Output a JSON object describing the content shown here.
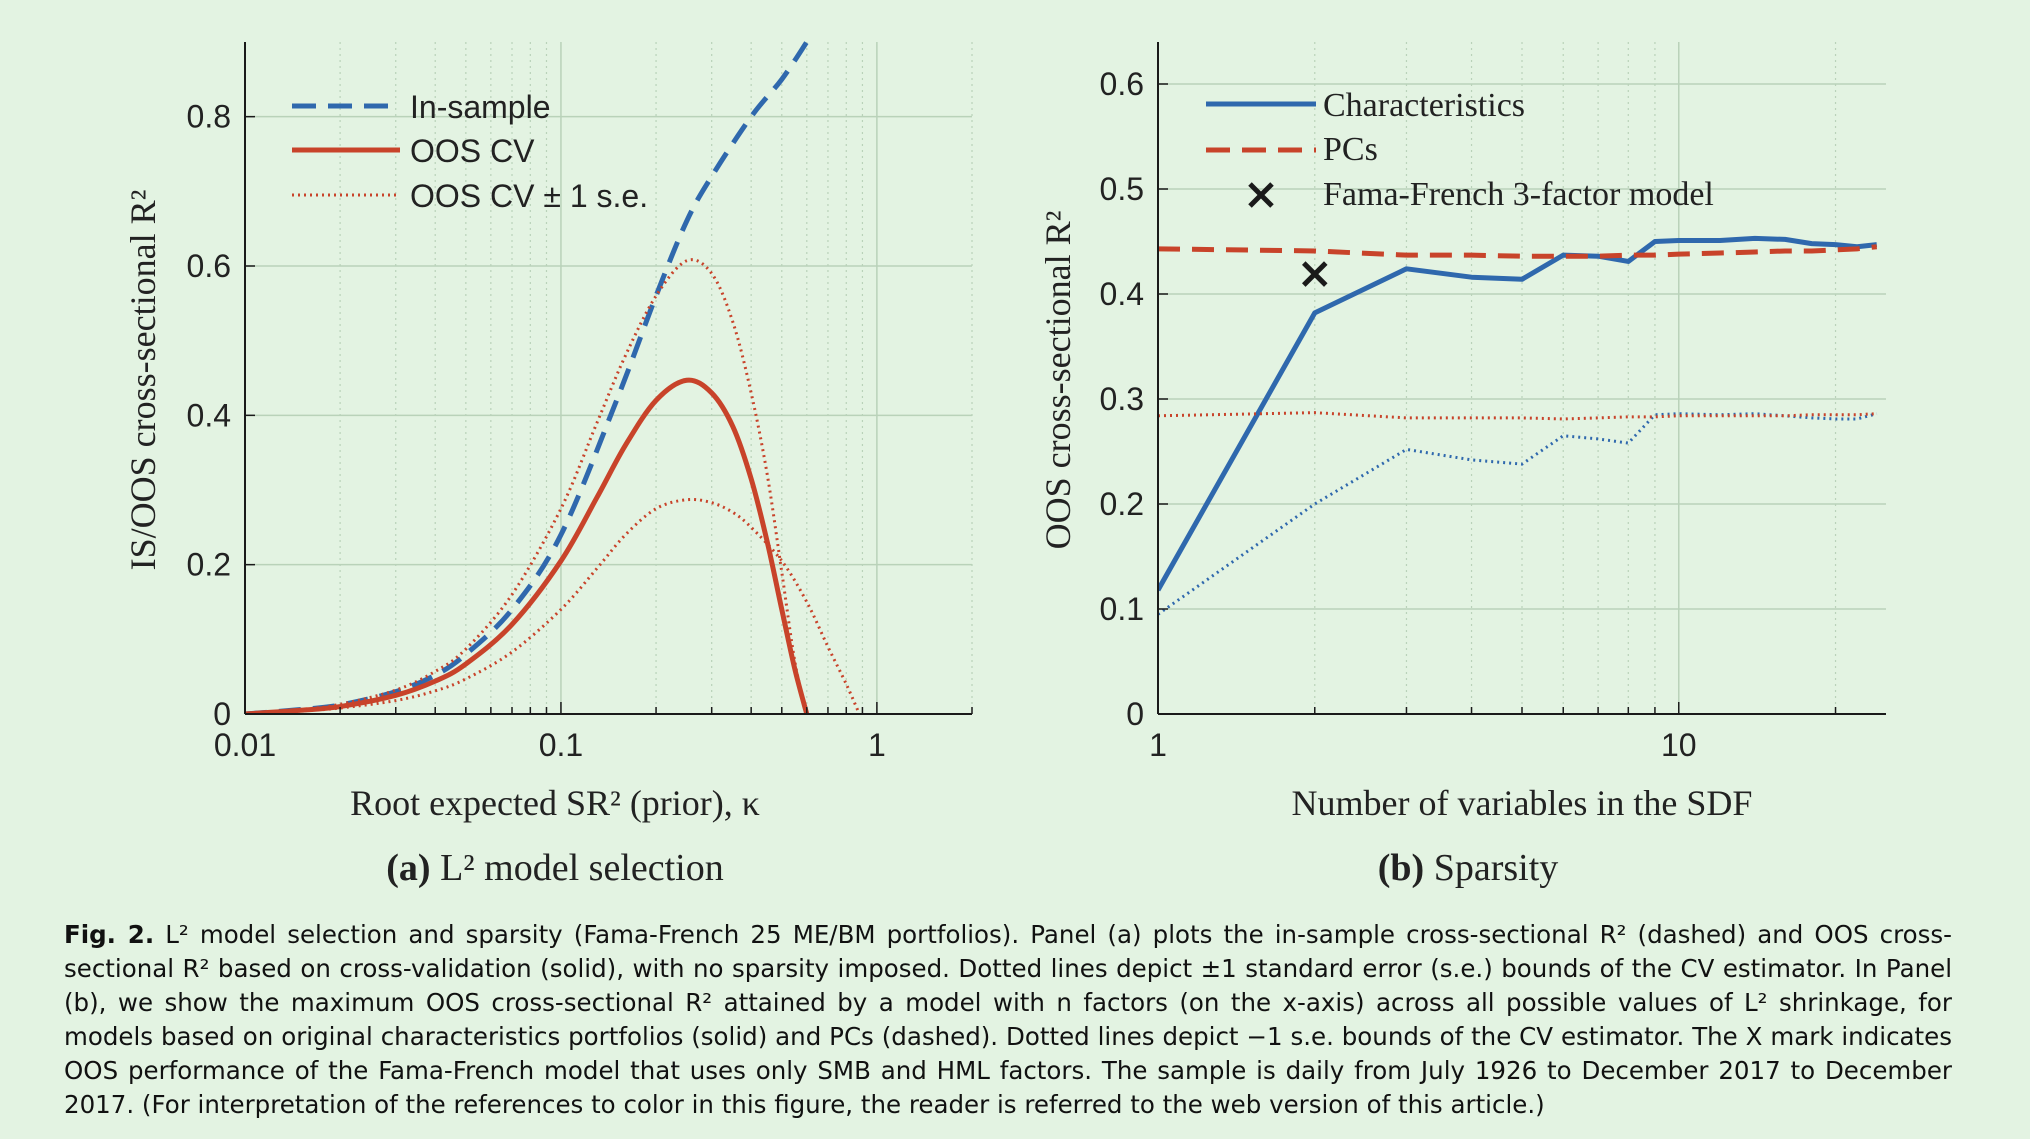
{
  "colors": {
    "background": "#e3f3e2",
    "blue": "#2f68ad",
    "red": "#c8432a",
    "grid": "#b9d2b9",
    "axis": "#1a1a1a",
    "marker": "#1a1a1a"
  },
  "panel_a": {
    "label_bold": "(a)",
    "label_rest": " L² model selection",
    "legend": [
      "In-sample",
      "OOS CV",
      "OOS CV ± 1 s.e."
    ]
  },
  "panel_b": {
    "label_bold": "(b)",
    "label_rest": " Sparsity",
    "legend": [
      "Characteristics",
      "PCs",
      "Fama-French 3-factor model"
    ]
  },
  "chart_data": [
    {
      "type": "line",
      "xscale": "log",
      "xlim": [
        0.01,
        2
      ],
      "ylim": [
        0,
        0.9
      ],
      "xticks": [
        0.01,
        0.1,
        1
      ],
      "xtick_labels": [
        "0.01",
        "0.1",
        "1"
      ],
      "yticks": [
        0,
        0.2,
        0.4,
        0.6,
        0.8
      ],
      "ytick_labels": [
        "0",
        "0.2",
        "0.4",
        "0.6",
        "0.8"
      ],
      "xlabel": "Root expected SR² (prior), κ",
      "ylabel": "IS/OOS cross-sectional R²",
      "grid": true,
      "legend_position": "top-left",
      "series": [
        {
          "name": "In-sample",
          "style": "dashed",
          "color": "#2f68ad",
          "x": [
            0.01,
            0.015,
            0.02,
            0.03,
            0.04,
            0.05,
            0.07,
            0.1,
            0.15,
            0.2,
            0.25,
            0.3,
            0.4,
            0.5,
            0.6
          ],
          "y": [
            0.0,
            0.006,
            0.012,
            0.03,
            0.052,
            0.08,
            0.14,
            0.24,
            0.42,
            0.56,
            0.66,
            0.72,
            0.8,
            0.85,
            0.9
          ]
        },
        {
          "name": "OOS CV",
          "style": "solid",
          "color": "#c8432a",
          "x": [
            0.01,
            0.015,
            0.02,
            0.03,
            0.04,
            0.05,
            0.07,
            0.1,
            0.13,
            0.16,
            0.2,
            0.25,
            0.3,
            0.35,
            0.4,
            0.45,
            0.5,
            0.55,
            0.6
          ],
          "y": [
            0.0,
            0.005,
            0.01,
            0.025,
            0.044,
            0.067,
            0.12,
            0.205,
            0.29,
            0.36,
            0.42,
            0.447,
            0.43,
            0.385,
            0.315,
            0.23,
            0.14,
            0.06,
            0.0
          ]
        },
        {
          "name": "OOS CV ± 1 s.e.",
          "style": "dotted",
          "color": "#c8432a",
          "x": [
            0.01,
            0.015,
            0.02,
            0.03,
            0.04,
            0.05,
            0.07,
            0.1,
            0.13,
            0.16,
            0.2,
            0.25,
            0.3,
            0.35,
            0.4,
            0.45,
            0.5,
            0.55,
            0.6
          ],
          "y": [
            0.0,
            0.006,
            0.013,
            0.032,
            0.057,
            0.087,
            0.16,
            0.275,
            0.39,
            0.48,
            0.56,
            0.607,
            0.59,
            0.525,
            0.43,
            0.32,
            0.19,
            0.07,
            0.0
          ]
        },
        {
          "name": "",
          "style": "dotted",
          "color": "#c8432a",
          "x": [
            0.01,
            0.015,
            0.02,
            0.03,
            0.04,
            0.05,
            0.07,
            0.1,
            0.13,
            0.16,
            0.2,
            0.25,
            0.3,
            0.35,
            0.4,
            0.5,
            0.6,
            0.7,
            0.8,
            0.88
          ],
          "y": [
            0.0,
            0.004,
            0.008,
            0.018,
            0.031,
            0.047,
            0.083,
            0.14,
            0.195,
            0.24,
            0.275,
            0.287,
            0.283,
            0.27,
            0.25,
            0.205,
            0.15,
            0.09,
            0.04,
            0.0
          ]
        }
      ]
    },
    {
      "type": "line",
      "xscale": "log",
      "xlim": [
        1,
        25
      ],
      "ylim": [
        0,
        0.64
      ],
      "xticks": [
        1,
        10
      ],
      "xtick_labels": [
        "1",
        "10"
      ],
      "yticks": [
        0,
        0.1,
        0.2,
        0.3,
        0.4,
        0.5,
        0.6
      ],
      "ytick_labels": [
        "0",
        "0.1",
        "0.2",
        "0.3",
        "0.4",
        "0.5",
        "0.6"
      ],
      "xlabel": "Number of variables in the SDF",
      "ylabel": "OOS cross-sectional R²",
      "grid": true,
      "legend_position": "top-left",
      "series": [
        {
          "name": "Characteristics",
          "style": "solid",
          "color": "#2f68ad",
          "x": [
            1,
            2,
            3,
            4,
            5,
            6,
            7,
            8,
            9,
            10,
            12,
            14,
            16,
            18,
            20,
            22,
            24
          ],
          "y": [
            0.118,
            0.382,
            0.424,
            0.416,
            0.414,
            0.437,
            0.436,
            0.431,
            0.45,
            0.451,
            0.451,
            0.453,
            0.452,
            0.448,
            0.447,
            0.445,
            0.447
          ]
        },
        {
          "name": "PCs",
          "style": "dashed",
          "color": "#c8432a",
          "x": [
            1,
            2,
            3,
            4,
            5,
            6,
            7,
            8,
            9,
            10,
            12,
            14,
            16,
            18,
            20,
            22,
            24
          ],
          "y": [
            0.443,
            0.441,
            0.437,
            0.437,
            0.436,
            0.436,
            0.436,
            0.437,
            0.437,
            0.438,
            0.439,
            0.44,
            0.441,
            0.441,
            0.442,
            0.443,
            0.445
          ]
        },
        {
          "name": "",
          "style": "dotted",
          "color": "#2f68ad",
          "x": [
            1,
            2,
            3,
            4,
            5,
            6,
            7,
            8,
            9,
            10,
            12,
            14,
            16,
            18,
            20,
            22,
            24
          ],
          "y": [
            0.095,
            0.2,
            0.252,
            0.242,
            0.238,
            0.265,
            0.262,
            0.258,
            0.285,
            0.286,
            0.285,
            0.286,
            0.284,
            0.282,
            0.281,
            0.281,
            0.286
          ]
        },
        {
          "name": "",
          "style": "dotted",
          "color": "#c8432a",
          "x": [
            1,
            2,
            3,
            4,
            5,
            6,
            7,
            8,
            9,
            10,
            12,
            14,
            16,
            18,
            20,
            22,
            24
          ],
          "y": [
            0.284,
            0.287,
            0.282,
            0.282,
            0.282,
            0.281,
            0.282,
            0.283,
            0.283,
            0.284,
            0.284,
            0.284,
            0.284,
            0.285,
            0.285,
            0.285,
            0.286
          ]
        },
        {
          "name": "Fama-French 3-factor model",
          "style": "marker-x",
          "color": "#1a1a1a",
          "x": [
            2
          ],
          "y": [
            0.419
          ]
        }
      ]
    }
  ],
  "caption": {
    "label": "Fig. 2.",
    "text": " L² model selection and sparsity (Fama-French 25 ME/BM portfolios). Panel (a) plots the in-sample cross-sectional R² (dashed) and OOS cross-sectional R² based on cross-validation (solid), with no sparsity imposed. Dotted lines depict ±1 standard error (s.e.) bounds of the CV estimator. In Panel (b), we show the maximum OOS cross-sectional R² attained by a model with n factors (on the x-axis) across all possible values of L² shrinkage, for models based on original characteristics portfolios (solid) and PCs (dashed). Dotted lines depict −1 s.e. bounds of the CV estimator. The X mark indicates OOS performance of the Fama-French model that uses only SMB and HML factors. The sample is daily from July 1926 to December 2017 to December 2017. (For interpretation of the references to color in this figure, the reader is referred to the web version of this article.)"
  }
}
